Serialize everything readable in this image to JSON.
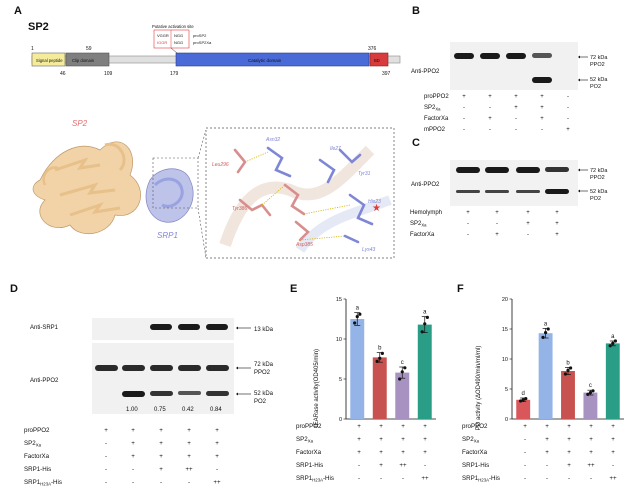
{
  "panels": {
    "A": {
      "letter": "A",
      "protein": "SP2",
      "domain_bar": {
        "positions_top": [
          "1",
          "59",
          "376"
        ],
        "positions_bottom": [
          "46",
          "109",
          "179",
          "397"
        ],
        "domains": [
          "Signal peptide",
          "Clip domain",
          "Catalytic domain",
          "BD"
        ],
        "activation_label": "Putative activation site",
        "activation_codes": [
          "VGGR",
          "IGGR",
          "NGG",
          "NGG"
        ],
        "activation_names": [
          "proSP2",
          "proSP2Xa"
        ]
      },
      "structure": {
        "sp2_label": "SP2",
        "srp1_label": "SRP1",
        "residues": [
          "Asn32",
          "Leu296",
          "Ile27",
          "Tyr31",
          "Tyr386",
          "His23",
          "Asp385",
          "Lys43"
        ]
      }
    },
    "B": {
      "letter": "B",
      "blot_label": "Anti-PPO2",
      "bands": [
        "72 kDa",
        "PPO2",
        "52 kDa",
        "PO2"
      ],
      "rows": [
        {
          "label": "proPPO2",
          "signs": [
            "+",
            "+",
            "+",
            "+",
            "-"
          ]
        },
        {
          "label": "SP2",
          "sub": "Xa",
          "signs": [
            "-",
            "-",
            "+",
            "+",
            "-"
          ]
        },
        {
          "label": "FactorXa",
          "signs": [
            "-",
            "+",
            "-",
            "+",
            "-"
          ]
        },
        {
          "label": "mPPO2",
          "signs": [
            "-",
            "-",
            "-",
            "-",
            "+"
          ]
        }
      ]
    },
    "C": {
      "letter": "C",
      "blot_label": "Anti-PPO2",
      "bands": [
        "72 kDa",
        "PPO2",
        "52 kDa",
        "PO2"
      ],
      "rows": [
        {
          "label": "Hemolymph",
          "signs": [
            "+",
            "+",
            "+",
            "+"
          ]
        },
        {
          "label": "SP2",
          "sub": "Xa",
          "signs": [
            "-",
            "-",
            "+",
            "+"
          ]
        },
        {
          "label": "FactorXa",
          "signs": [
            "-",
            "+",
            "-",
            "+"
          ]
        }
      ]
    },
    "D": {
      "letter": "D",
      "blot_top_label": "Anti-SRP1",
      "blot_bottom_label": "Anti-PPO2",
      "band_top": "13 kDa",
      "bands": [
        "72 kDa",
        "PPO2",
        "52 kDa",
        "PO2"
      ],
      "ratios": [
        "1.00",
        "0.75",
        "0.42",
        "0.84"
      ],
      "rows": [
        {
          "label": "proPPO2",
          "signs": [
            "+",
            "+",
            "+",
            "+",
            "+"
          ]
        },
        {
          "label": "SP2",
          "sub": "Xa",
          "signs": [
            "-",
            "+",
            "+",
            "+",
            "+"
          ]
        },
        {
          "label": "FactorXa",
          "signs": [
            "-",
            "+",
            "+",
            "+",
            "+"
          ]
        },
        {
          "label": "SRP1-His",
          "signs": [
            "-",
            "-",
            "+",
            "++",
            "-"
          ]
        },
        {
          "label": "SRP1",
          "sub": "H23A",
          "suffix": "-His",
          "signs": [
            "-",
            "-",
            "-",
            "-",
            "++"
          ]
        }
      ]
    },
    "E": {
      "letter": "E",
      "rows": [
        {
          "label": "proPPO2",
          "signs": [
            "+",
            "+",
            "+",
            "+"
          ]
        },
        {
          "label": "SP2",
          "sub": "Xa",
          "signs": [
            "+",
            "+",
            "+",
            "+"
          ]
        },
        {
          "label": "FactorXa",
          "signs": [
            "+",
            "+",
            "+",
            "+"
          ]
        },
        {
          "label": "SRP1-His",
          "signs": [
            "-",
            "+",
            "++",
            "-"
          ]
        },
        {
          "label": "SRP1",
          "sub": "H23A",
          "suffix": "-His",
          "signs": [
            "-",
            "-",
            "-",
            "++"
          ]
        }
      ]
    },
    "F": {
      "letter": "F",
      "rows": [
        {
          "label": "proPPO2",
          "signs": [
            "+",
            "+",
            "+",
            "+",
            "+"
          ]
        },
        {
          "label": "SP2",
          "sub": "Xa",
          "signs": [
            "-",
            "+",
            "+",
            "+",
            "+"
          ]
        },
        {
          "label": "FactorXa",
          "signs": [
            "-",
            "+",
            "+",
            "+",
            "+"
          ]
        },
        {
          "label": "SRP1-His",
          "signs": [
            "-",
            "-",
            "+",
            "++",
            "-"
          ]
        },
        {
          "label": "SRP1",
          "sub": "H23A",
          "suffix": "-His",
          "signs": [
            "-",
            "-",
            "-",
            "-",
            "++"
          ]
        }
      ]
    }
  },
  "chart_data": [
    {
      "type": "bar",
      "panel": "E",
      "title": "",
      "ylabel": "IEARase activity(OD405/min)",
      "ylim": [
        0,
        15
      ],
      "yticks": [
        "0",
        "5",
        "10",
        "15"
      ],
      "categories": [
        "1",
        "2",
        "3",
        "4"
      ],
      "values": [
        12.5,
        7.7,
        5.8,
        11.8
      ],
      "errors": [
        0.8,
        0.6,
        0.7,
        1.0
      ],
      "points": [
        [
          12.0,
          12.8,
          13.1
        ],
        [
          7.2,
          7.6,
          8.2
        ],
        [
          5.0,
          5.9,
          6.4
        ],
        [
          10.9,
          11.9,
          12.7
        ]
      ],
      "letters": [
        "a",
        "b",
        "c",
        "a"
      ],
      "colors": [
        "#94b4e8",
        "#c8524f",
        "#a792c2",
        "#2a9d86"
      ]
    },
    {
      "type": "bar",
      "panel": "F",
      "title": "",
      "ylabel": "PO activity (ΔOD490/min/ml/ml)",
      "ylim": [
        0,
        20
      ],
      "yticks": [
        "0",
        "5",
        "10",
        "15",
        "20"
      ],
      "categories": [
        "1",
        "2",
        "3",
        "4",
        "5"
      ],
      "values": [
        3.2,
        14.3,
        8.0,
        4.4,
        12.6
      ],
      "errors": [
        0.3,
        0.8,
        0.6,
        0.4,
        0.4
      ],
      "points": [
        [
          3.0,
          3.2,
          3.4
        ],
        [
          13.6,
          14.4,
          15.0
        ],
        [
          7.5,
          8.1,
          8.5
        ],
        [
          4.1,
          4.4,
          4.7
        ],
        [
          12.2,
          12.6,
          13.0
        ]
      ],
      "letters": [
        "d",
        "a",
        "b",
        "c",
        "a"
      ],
      "colors": [
        "#d9575a",
        "#94b4e8",
        "#c8524f",
        "#a792c2",
        "#2a9d86"
      ]
    }
  ]
}
